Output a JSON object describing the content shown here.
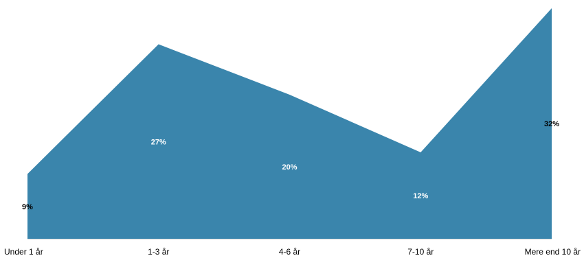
{
  "chart_data": {
    "type": "area",
    "categories": [
      "Under 1 år",
      "1-3 år",
      "4-6 år",
      "7-10 år",
      "Mere end 10 år"
    ],
    "values": [
      9,
      27,
      20,
      12,
      32
    ],
    "value_labels": [
      "9%",
      "27%",
      "20%",
      "12%",
      "32%"
    ],
    "unit": "%",
    "ylim": [
      0,
      32
    ],
    "grid": false,
    "legend": "none",
    "fill_color": "#3A85AC",
    "label_colors": [
      "#000000",
      "#ffffff",
      "#ffffff",
      "#ffffff",
      "#000000"
    ]
  }
}
